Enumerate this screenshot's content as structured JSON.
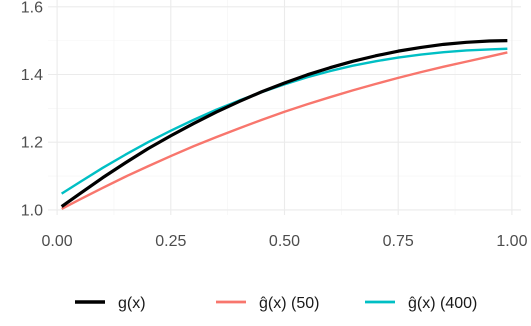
{
  "chart_data": {
    "type": "line",
    "title": "",
    "xlabel": "",
    "ylabel": "",
    "xlim": [
      -0.02,
      1.02
    ],
    "ylim": [
      0.985,
      1.62
    ],
    "grid": true,
    "legend_position": "bottom",
    "x_ticks": [
      {
        "value": 0.0,
        "label": "0.00"
      },
      {
        "value": 0.25,
        "label": "0.25"
      },
      {
        "value": 0.5,
        "label": "0.50"
      },
      {
        "value": 0.75,
        "label": "0.75"
      },
      {
        "value": 1.0,
        "label": "1.00"
      }
    ],
    "y_ticks": [
      {
        "value": 1.0,
        "label": "1.0"
      },
      {
        "value": 1.2,
        "label": "1.2"
      },
      {
        "value": 1.4,
        "label": "1.4"
      },
      {
        "value": 1.6,
        "label": "1.6"
      }
    ],
    "series": [
      {
        "name": "g(x)",
        "color": "#000000",
        "width": 3.2,
        "x": [
          0.01,
          0.05,
          0.1,
          0.15,
          0.2,
          0.25,
          0.3,
          0.35,
          0.4,
          0.45,
          0.5,
          0.55,
          0.6,
          0.65,
          0.7,
          0.75,
          0.8,
          0.85,
          0.9,
          0.95,
          0.99
        ],
        "y": [
          1.01,
          1.048,
          1.095,
          1.139,
          1.181,
          1.219,
          1.255,
          1.289,
          1.32,
          1.349,
          1.375,
          1.399,
          1.42,
          1.439,
          1.455,
          1.469,
          1.48,
          1.489,
          1.495,
          1.499,
          1.5
        ]
      },
      {
        "name": "ĝ(x) (50)",
        "color": "#F8766D",
        "width": 2.4,
        "x": [
          0.01,
          0.05,
          0.1,
          0.15,
          0.2,
          0.25,
          0.3,
          0.35,
          0.4,
          0.45,
          0.5,
          0.55,
          0.6,
          0.65,
          0.7,
          0.75,
          0.8,
          0.85,
          0.9,
          0.95,
          0.99
        ],
        "y": [
          1.003,
          1.031,
          1.065,
          1.098,
          1.129,
          1.159,
          1.188,
          1.215,
          1.241,
          1.266,
          1.29,
          1.312,
          1.333,
          1.353,
          1.372,
          1.39,
          1.407,
          1.423,
          1.438,
          1.453,
          1.465
        ]
      },
      {
        "name": "ĝ(x) (400)",
        "color": "#00BFC4",
        "width": 2.4,
        "x": [
          0.01,
          0.05,
          0.1,
          0.15,
          0.2,
          0.25,
          0.3,
          0.35,
          0.4,
          0.45,
          0.5,
          0.55,
          0.6,
          0.65,
          0.7,
          0.75,
          0.8,
          0.85,
          0.9,
          0.95,
          0.99
        ],
        "y": [
          1.048,
          1.082,
          1.124,
          1.163,
          1.2,
          1.234,
          1.266,
          1.296,
          1.323,
          1.348,
          1.371,
          1.392,
          1.41,
          1.426,
          1.439,
          1.45,
          1.459,
          1.466,
          1.471,
          1.474,
          1.476
        ]
      }
    ]
  }
}
